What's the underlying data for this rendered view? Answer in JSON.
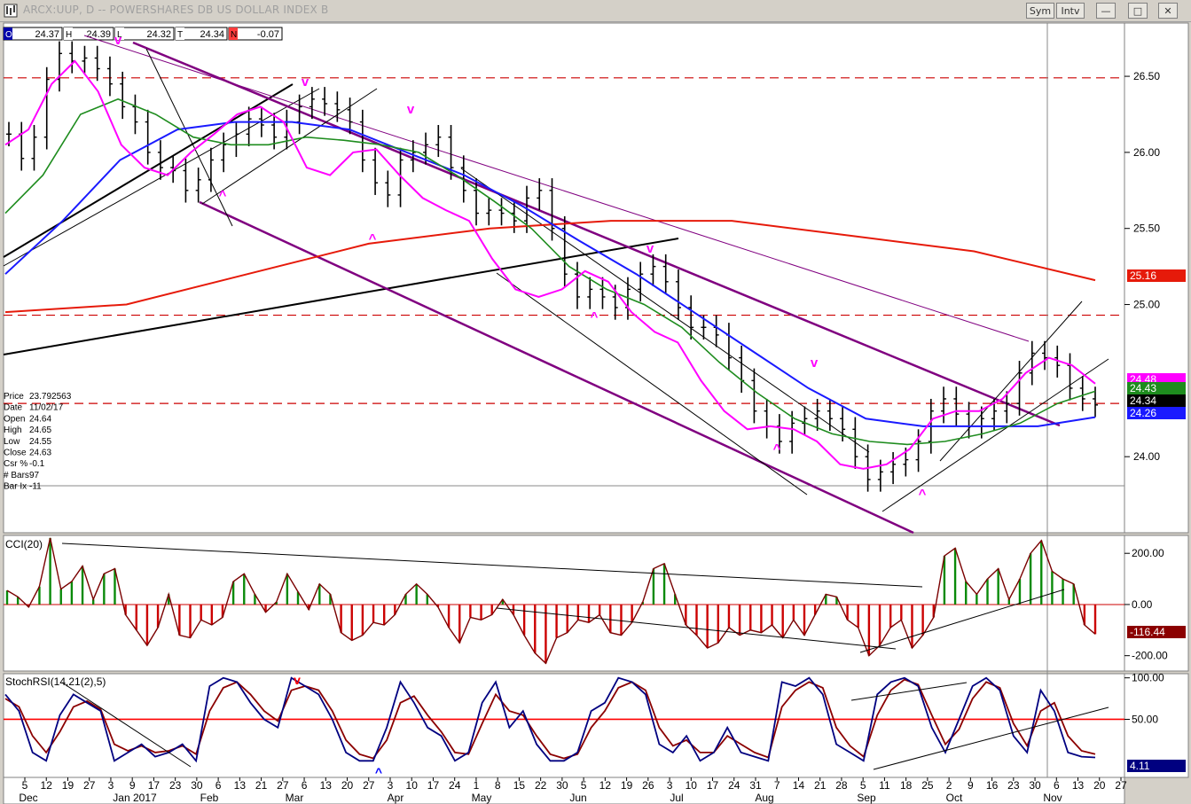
{
  "window": {
    "title": "ARCX:UUP, D -- POWERSHARES DB US DOLLAR INDEX B",
    "sym_label": "Sym",
    "intv_label": "Intv"
  },
  "quote_bar": {
    "open_label": "O",
    "open": "24.37",
    "high_label": "H",
    "high": "24.39",
    "low_label": "L",
    "low": "24.32",
    "close_label": "T",
    "close": "24.34",
    "change_label": "N",
    "change": "-0.07"
  },
  "info_box": {
    "rows": [
      {
        "label": "Price",
        "value": "23.792563"
      },
      {
        "label": "Date",
        "value": "11/02/17"
      },
      {
        "label": "Open",
        "value": "24.64"
      },
      {
        "label": "High",
        "value": "24.65"
      },
      {
        "label": "Low",
        "value": "24.55"
      },
      {
        "label": "Close",
        "value": "24.63"
      },
      {
        "label": "Csr %",
        "value": "-0.1"
      },
      {
        "label": "# Bars",
        "value": "97"
      },
      {
        "label": "Bar Ix",
        "value": "-11"
      }
    ]
  },
  "colors": {
    "price_bars": "#000000",
    "ma_magenta": "#ff00ff",
    "ma_green": "#1e8c1e",
    "ma_blue": "#1a1aff",
    "ma_red": "#e61a0a",
    "channel_purple": "#800080",
    "dashed_red": "#cc0000",
    "cci_positive": "#0a8a0a",
    "cci_negative": "#cc0000",
    "stoch_blue": "#000080",
    "stoch_red": "#8b0000",
    "chart_bg": "#ffffff"
  },
  "chart_data": [
    {
      "type": "bar",
      "title": "ARCX:UUP, D -- POWERSHARES DB US DOLLAR INDEX B",
      "ylim": [
        23.5,
        26.85
      ],
      "y_ticks": [
        "26.50",
        "26.00",
        "25.50",
        "25.00",
        "24.00"
      ],
      "y_tick_values": [
        26.5,
        26.0,
        25.5,
        25.0,
        24.0
      ],
      "price_labels": [
        {
          "value": 25.16,
          "text": "25.16",
          "color": "#e61a0a"
        },
        {
          "value": 24.48,
          "text": "24.48",
          "color": "#ff00ff"
        },
        {
          "value": 24.43,
          "text": "24.43",
          "color": "#1e8c1e"
        },
        {
          "value": 24.34,
          "text": "24.34",
          "color": "#000000"
        },
        {
          "value": 24.26,
          "text": "24.26",
          "color": "#1a1aff"
        }
      ],
      "dashed_levels": [
        26.49,
        24.93,
        24.35
      ],
      "x_labels": [
        "5",
        "12",
        "19",
        "27",
        "3",
        "9",
        "17",
        "23",
        "30",
        "6",
        "13",
        "21",
        "27",
        "6",
        "13",
        "20",
        "27",
        "3",
        "10",
        "17",
        "24",
        "1",
        "8",
        "15",
        "22",
        "30",
        "5",
        "12",
        "19",
        "26",
        "3",
        "10",
        "17",
        "24",
        "31",
        "7",
        "14",
        "21",
        "28",
        "5",
        "11",
        "18",
        "25",
        "2",
        "9",
        "16",
        "23",
        "30",
        "6",
        "13",
        "20",
        "27"
      ],
      "month_labels": [
        "Dec",
        "Jan 2017",
        "Feb",
        "Mar",
        "Apr",
        "May",
        "Jun",
        "Jul",
        "Aug",
        "Sep",
        "Oct",
        "Nov"
      ],
      "close_series": [
        26.12,
        25.96,
        26.1,
        26.48,
        26.65,
        26.6,
        26.62,
        26.55,
        26.45,
        26.3,
        26.2,
        26.0,
        25.9,
        25.88,
        25.75,
        25.82,
        25.95,
        26.05,
        26.12,
        26.22,
        26.18,
        26.1,
        26.2,
        26.3,
        26.35,
        26.32,
        26.28,
        26.2,
        25.95,
        25.8,
        25.72,
        25.95,
        26.0,
        26.05,
        26.1,
        25.9,
        25.75,
        25.6,
        25.62,
        25.6,
        25.55,
        25.7,
        25.75,
        25.5,
        25.2,
        25.05,
        25.1,
        25.05,
        24.98,
        25.1,
        25.2,
        25.25,
        25.15,
        24.98,
        24.85,
        24.85,
        24.8,
        24.65,
        24.5,
        24.3,
        24.2,
        24.1,
        24.22,
        24.25,
        24.3,
        24.25,
        24.18,
        24.0,
        23.85,
        23.9,
        23.95,
        23.98,
        24.1,
        24.3,
        24.38,
        24.28,
        24.2,
        24.25,
        24.3,
        24.35,
        24.55,
        24.68,
        24.65,
        24.6,
        24.45,
        24.38,
        24.34
      ],
      "sma_magenta": [
        26.05,
        26.15,
        26.45,
        26.6,
        26.4,
        26.05,
        25.9,
        25.85,
        26.0,
        26.12,
        26.25,
        26.3,
        26.2,
        25.9,
        25.85,
        26.0,
        26.02,
        25.85,
        25.7,
        25.62,
        25.55,
        25.3,
        25.1,
        25.05,
        25.1,
        25.22,
        25.15,
        24.95,
        24.82,
        24.75,
        24.5,
        24.3,
        24.18,
        24.2,
        24.18,
        24.1,
        23.95,
        23.92,
        23.95,
        24.05,
        24.25,
        24.3,
        24.3,
        24.38,
        24.55,
        24.65,
        24.6,
        24.48
      ],
      "sma_green": [
        25.6,
        25.85,
        26.25,
        26.35,
        26.25,
        26.1,
        26.05,
        26.05,
        26.1,
        26.08,
        26.05,
        26.0,
        25.85,
        25.68,
        25.5,
        25.25,
        25.1,
        25.0,
        24.85,
        24.62,
        24.42,
        24.25,
        24.15,
        24.1,
        24.08,
        24.1,
        24.15,
        24.22,
        24.35,
        24.43
      ],
      "sma_blue": [
        25.2,
        25.55,
        25.95,
        26.15,
        26.2,
        26.2,
        26.15,
        26.0,
        25.85,
        25.65,
        25.42,
        25.2,
        24.95,
        24.7,
        24.45,
        24.25,
        24.2,
        24.2,
        24.2,
        24.26
      ],
      "sma_red": [
        24.95,
        25.0,
        25.2,
        25.4,
        25.5,
        25.55,
        25.55,
        25.45,
        25.35,
        25.16
      ],
      "channel_lines": 5
    },
    {
      "type": "bar",
      "title": "CCI(20)",
      "ylim": [
        -260,
        270
      ],
      "y_ticks": [
        "200.00",
        "0.00",
        "-200.00"
      ],
      "y_tick_values": [
        200,
        0,
        -200
      ],
      "last_label": {
        "value": -116.44,
        "text": "-116.44"
      },
      "values": [
        55,
        30,
        -10,
        70,
        260,
        60,
        90,
        150,
        20,
        120,
        140,
        -40,
        -100,
        -160,
        -90,
        40,
        -120,
        -130,
        -60,
        -80,
        -50,
        90,
        120,
        40,
        -30,
        10,
        120,
        50,
        -20,
        80,
        40,
        -110,
        -140,
        -120,
        -70,
        -80,
        -40,
        40,
        80,
        40,
        -10,
        -90,
        -150,
        -50,
        -60,
        -40,
        20,
        -40,
        -120,
        -190,
        -230,
        -130,
        -110,
        -60,
        -70,
        -40,
        -110,
        -120,
        -70,
        10,
        140,
        160,
        40,
        -80,
        -120,
        -170,
        -150,
        -90,
        -120,
        -100,
        -110,
        -80,
        -130,
        -60,
        -120,
        -40,
        40,
        30,
        -60,
        -90,
        -200,
        -160,
        -90,
        -60,
        -170,
        -120,
        -50,
        190,
        220,
        90,
        40,
        100,
        140,
        20,
        100,
        200,
        250,
        130,
        100,
        80,
        -80,
        -116
      ]
    },
    {
      "type": "line",
      "title": "StochRSI(14,21(2),5)",
      "ylim": [
        -20,
        105
      ],
      "y_ticks": [
        "100.00",
        "50.00"
      ],
      "y_tick_values": [
        100,
        50
      ],
      "last_label": {
        "value": 4.11,
        "text": "4.11"
      },
      "series": [
        {
          "values": [
            80,
            60,
            10,
            0,
            55,
            80,
            70,
            60,
            0,
            10,
            20,
            5,
            10,
            20,
            0,
            90,
            100,
            95,
            70,
            50,
            40,
            100,
            90,
            80,
            50,
            10,
            0,
            0,
            40,
            95,
            70,
            40,
            30,
            0,
            10,
            70,
            95,
            40,
            60,
            20,
            0,
            0,
            10,
            60,
            70,
            100,
            95,
            80,
            20,
            10,
            30,
            0,
            10,
            40,
            10,
            5,
            0,
            95,
            90,
            100,
            80,
            20,
            10,
            0,
            80,
            95,
            100,
            90,
            40,
            10,
            50,
            90,
            100,
            85,
            30,
            10,
            85,
            60,
            10,
            5,
            4
          ]
        },
        {
          "values": [
            75,
            65,
            30,
            10,
            35,
            65,
            72,
            62,
            20,
            12,
            18,
            10,
            12,
            18,
            8,
            60,
            88,
            95,
            80,
            60,
            48,
            85,
            90,
            85,
            60,
            25,
            8,
            3,
            25,
            70,
            78,
            55,
            35,
            10,
            8,
            45,
            80,
            60,
            55,
            30,
            8,
            3,
            8,
            40,
            60,
            88,
            95,
            85,
            40,
            18,
            25,
            10,
            10,
            30,
            20,
            10,
            4,
            65,
            85,
            95,
            88,
            40,
            18,
            5,
            55,
            85,
            98,
            92,
            55,
            20,
            38,
            75,
            95,
            88,
            45,
            18,
            60,
            70,
            30,
            12,
            8
          ]
        }
      ],
      "ref_line": 50
    }
  ],
  "annotations": {
    "peak_marker": "v",
    "trough_marker": "^"
  }
}
